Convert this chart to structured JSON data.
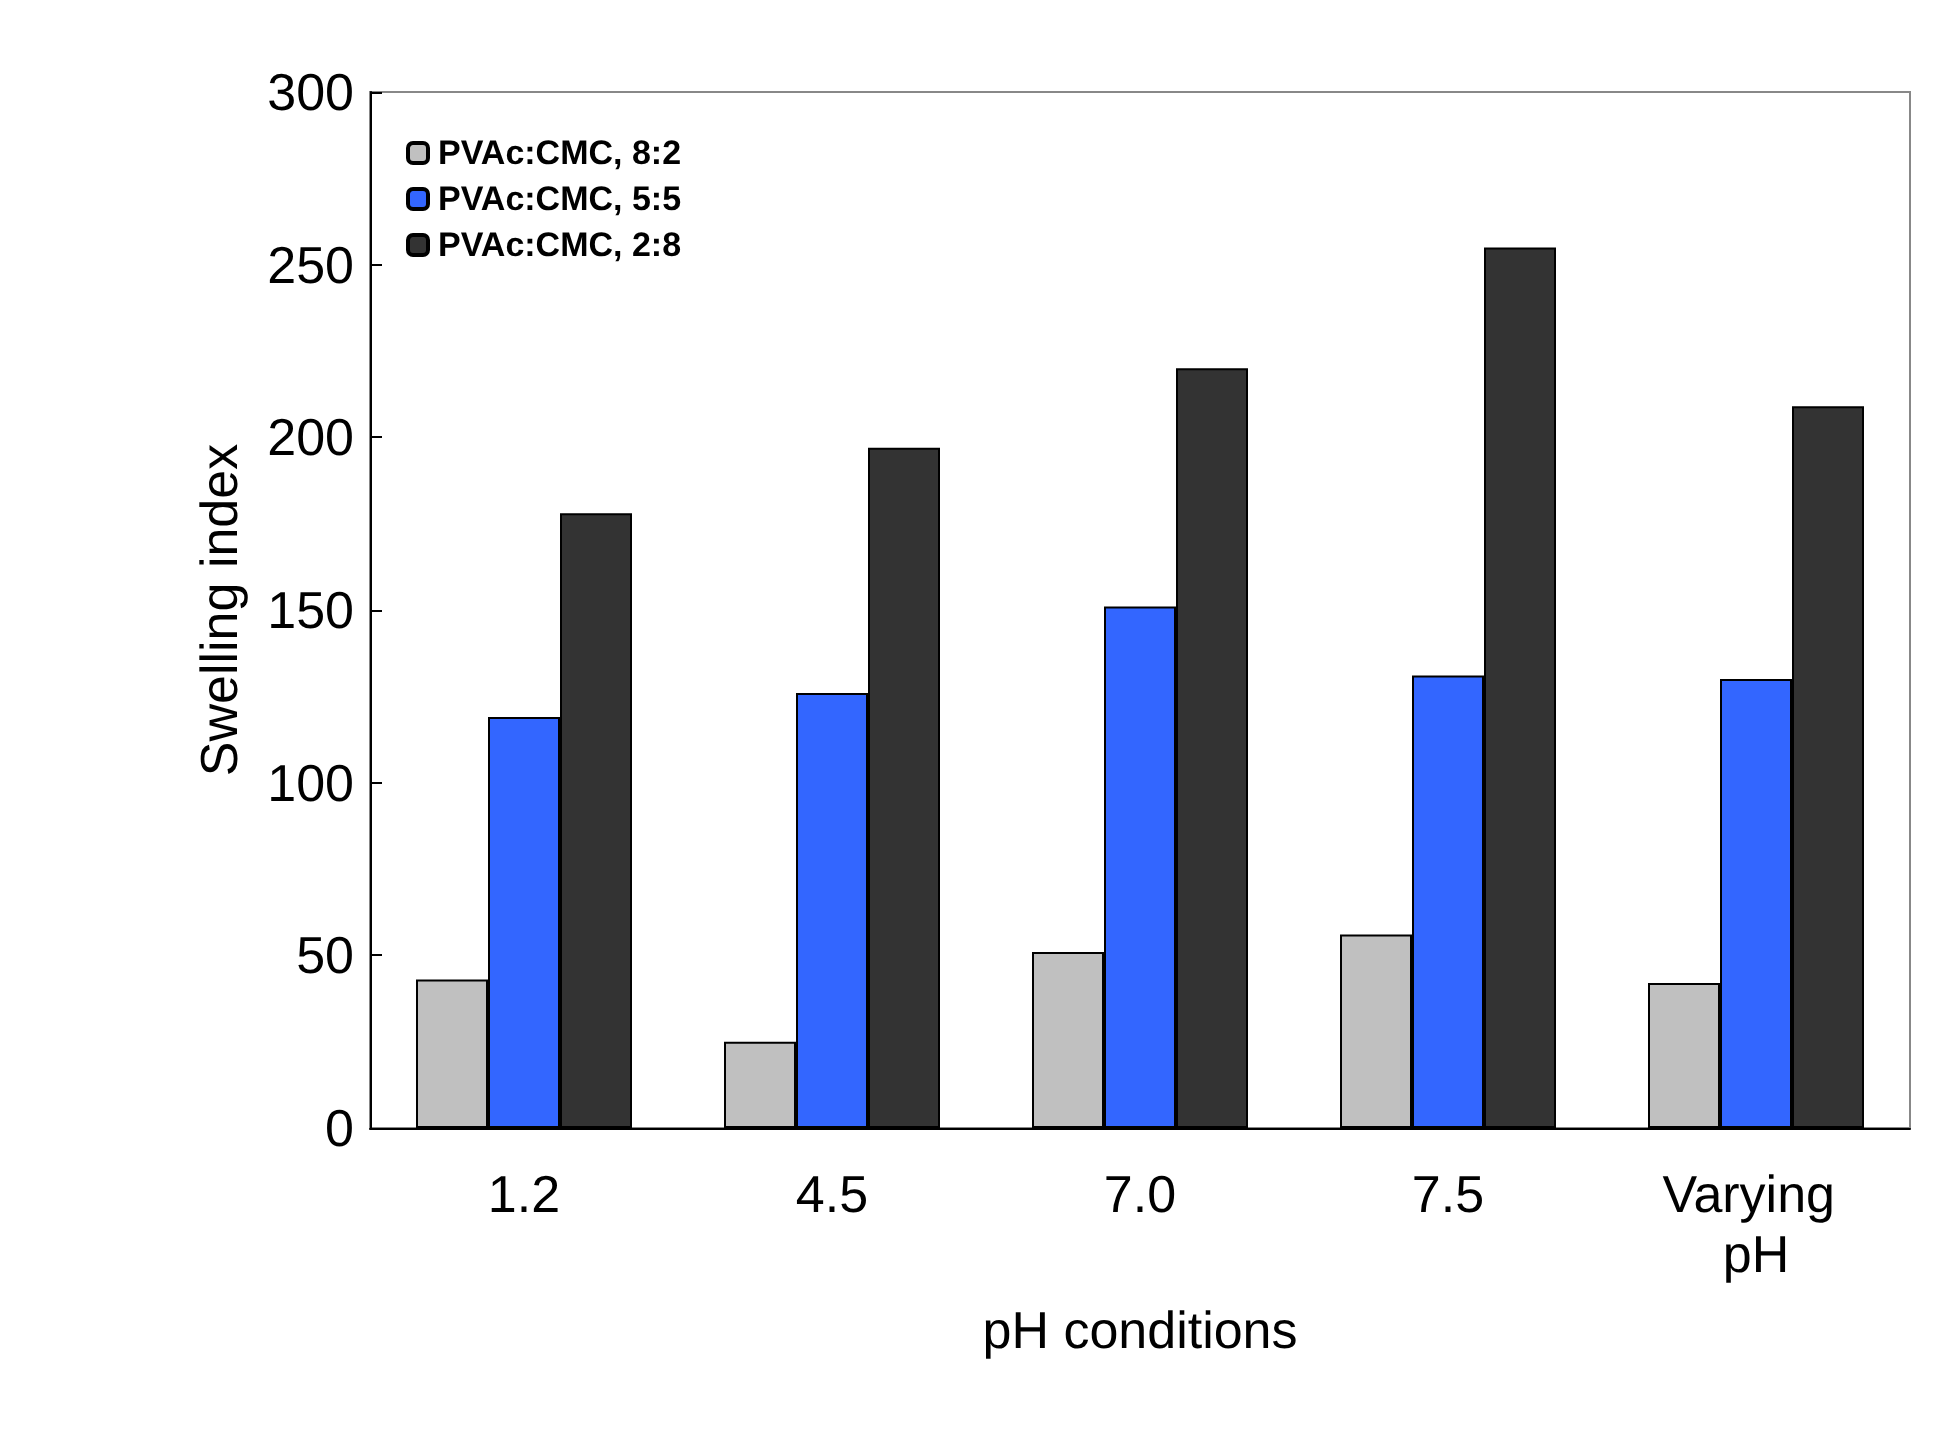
{
  "chart_data": {
    "type": "bar",
    "xlabel": "pH conditions",
    "ylabel": "Swelling index",
    "categories": [
      "1.2",
      "4.5",
      "7.0",
      "7.5",
      "Varying pH"
    ],
    "series": [
      {
        "name": "PVAc:CMC, 8:2",
        "color": "#c0c0c0",
        "values": [
          43,
          25,
          51,
          56,
          42
        ]
      },
      {
        "name": "PVAc:CMC, 5:5",
        "color": "#3366ff",
        "values": [
          119,
          126,
          151,
          131,
          130
        ]
      },
      {
        "name": "PVAc:CMC, 2:8",
        "color": "#333333",
        "values": [
          178,
          197,
          220,
          255,
          209
        ]
      }
    ],
    "ylim": [
      0,
      300
    ],
    "yticks": [
      0,
      50,
      100,
      150,
      200,
      250,
      300
    ],
    "grid": false,
    "legend": "top left"
  }
}
